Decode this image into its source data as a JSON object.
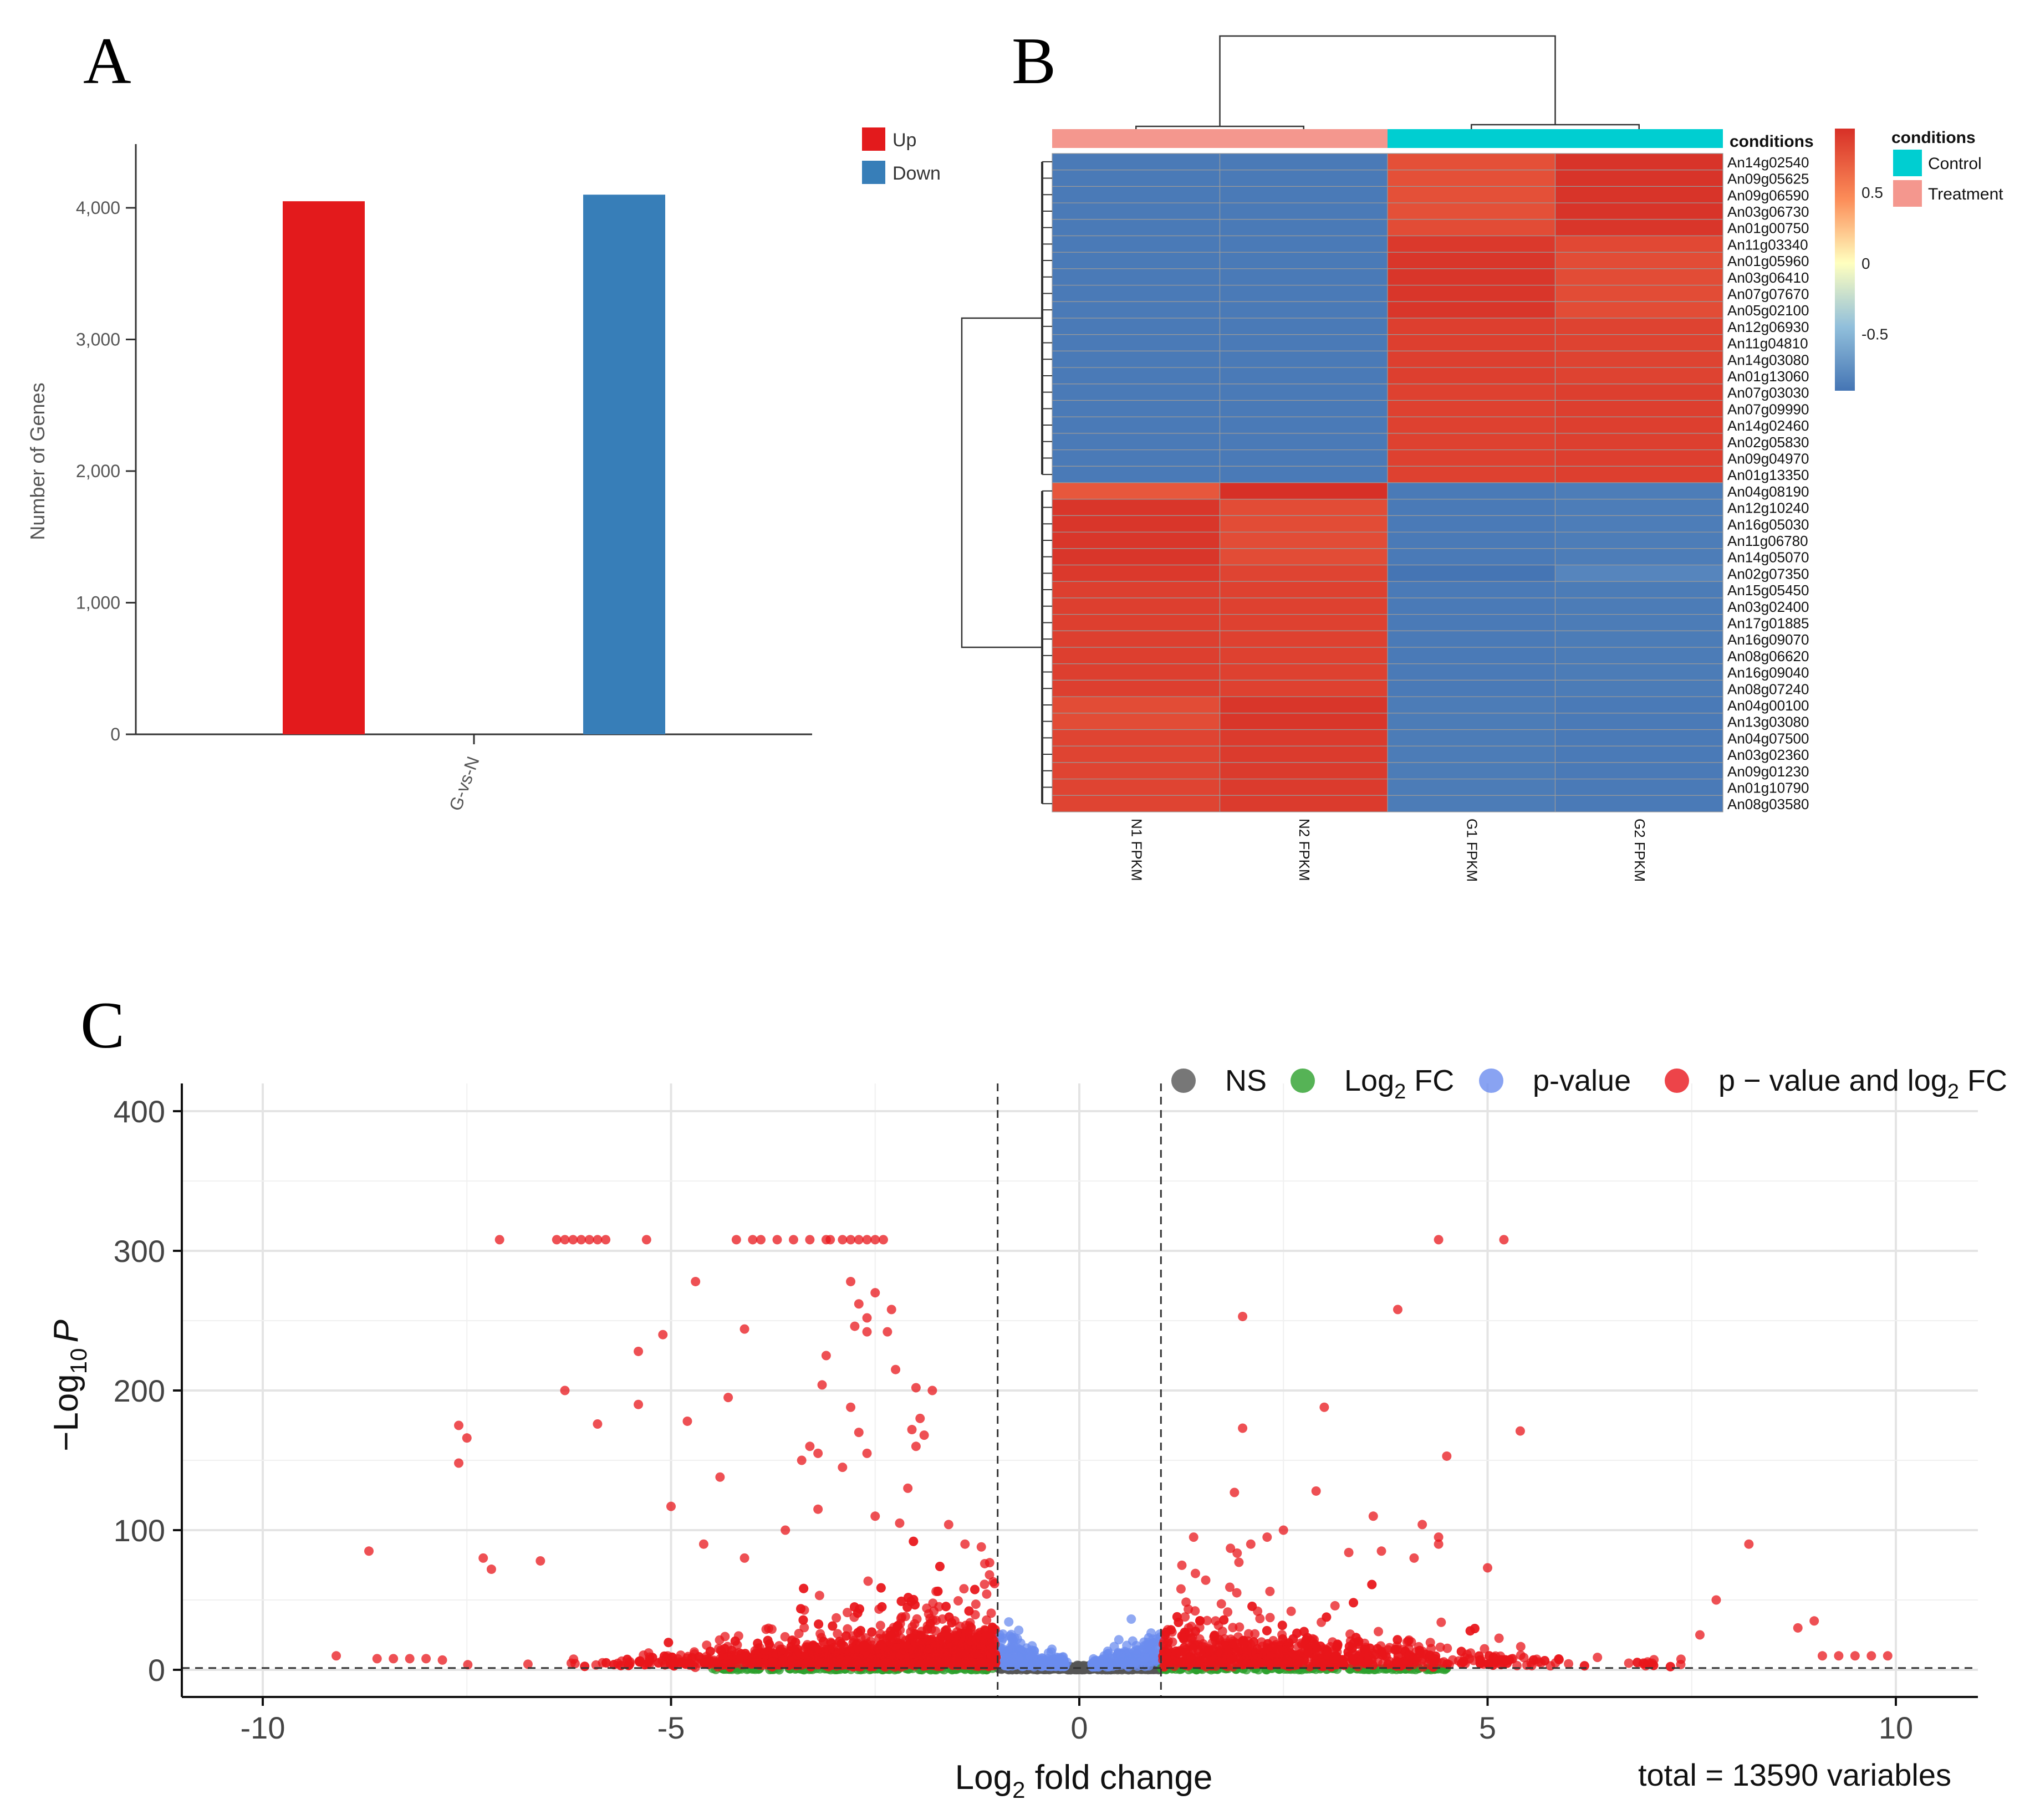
{
  "panel_labels": [
    "A",
    "B",
    "C"
  ],
  "chart_data": [
    {
      "panel": "A",
      "type": "bar",
      "categories": [
        "G-vs-N"
      ],
      "series": [
        {
          "name": "Up",
          "color": "#e31a1c",
          "values": [
            4050
          ]
        },
        {
          "name": "Down",
          "color": "#377eb8",
          "values": [
            4100
          ]
        }
      ],
      "ylabel": "Number of Genes",
      "xlabel": "",
      "ylim": [
        0,
        4500
      ],
      "yticks": [
        0,
        1000,
        2000,
        3000,
        4000
      ],
      "ytick_labels": [
        "0",
        "1,000",
        "2,000",
        "3,000",
        "4,000"
      ],
      "legend": [
        "Up",
        "Down"
      ],
      "legend_position": "top-right"
    },
    {
      "panel": "B",
      "type": "heatmap",
      "columns": [
        "N1 FPKM",
        "N2 FPKM",
        "G1 FPKM",
        "G2 FPKM"
      ],
      "column_conditions": [
        "Treatment",
        "Treatment",
        "Control",
        "Control"
      ],
      "rows": [
        "An14g02540",
        "An09g05625",
        "An09g06590",
        "An03g06730",
        "An01g00750",
        "An11g03340",
        "An01g05960",
        "An03g06410",
        "An07g07670",
        "An05g02100",
        "An12g06930",
        "An11g04810",
        "An14g03080",
        "An01g13060",
        "An07g03030",
        "An07g09990",
        "An14g02460",
        "An02g05830",
        "An09g04970",
        "An01g13350",
        "An04g08190",
        "An12g10240",
        "An16g05030",
        "An11g06780",
        "An14g05070",
        "An02g07350",
        "An15g05450",
        "An03g02400",
        "An17g01885",
        "An16g09070",
        "An08g06620",
        "An16g09040",
        "An08g07240",
        "An04g00100",
        "An13g03080",
        "An04g07500",
        "An03g02360",
        "An09g01230",
        "An01g10790",
        "An08g03580"
      ],
      "values": [
        [
          -0.87,
          -0.87,
          0.78,
          0.93
        ],
        [
          -0.87,
          -0.87,
          0.78,
          0.93
        ],
        [
          -0.87,
          -0.87,
          0.78,
          0.93
        ],
        [
          -0.87,
          -0.87,
          0.78,
          0.93
        ],
        [
          -0.87,
          -0.87,
          0.8,
          0.92
        ],
        [
          -0.87,
          -0.87,
          0.9,
          0.82
        ],
        [
          -0.87,
          -0.87,
          0.92,
          0.8
        ],
        [
          -0.87,
          -0.87,
          0.92,
          0.8
        ],
        [
          -0.87,
          -0.87,
          0.92,
          0.8
        ],
        [
          -0.87,
          -0.87,
          0.92,
          0.8
        ],
        [
          -0.87,
          -0.87,
          0.87,
          0.85
        ],
        [
          -0.87,
          -0.87,
          0.87,
          0.85
        ],
        [
          -0.87,
          -0.87,
          0.87,
          0.85
        ],
        [
          -0.87,
          -0.87,
          0.87,
          0.85
        ],
        [
          -0.87,
          -0.87,
          0.86,
          0.87
        ],
        [
          -0.87,
          -0.87,
          0.86,
          0.87
        ],
        [
          -0.87,
          -0.87,
          0.86,
          0.87
        ],
        [
          -0.87,
          -0.87,
          0.86,
          0.87
        ],
        [
          -0.87,
          -0.87,
          0.86,
          0.87
        ],
        [
          -0.87,
          -0.87,
          0.86,
          0.87
        ],
        [
          0.74,
          0.96,
          -0.87,
          -0.85
        ],
        [
          0.92,
          0.8,
          -0.87,
          -0.85
        ],
        [
          0.92,
          0.8,
          -0.87,
          -0.85
        ],
        [
          0.92,
          0.8,
          -0.87,
          -0.85
        ],
        [
          0.92,
          0.8,
          -0.87,
          -0.85
        ],
        [
          0.9,
          0.84,
          -0.92,
          -0.8
        ],
        [
          0.87,
          0.86,
          -0.87,
          -0.86
        ],
        [
          0.87,
          0.86,
          -0.87,
          -0.86
        ],
        [
          0.87,
          0.86,
          -0.87,
          -0.86
        ],
        [
          0.87,
          0.86,
          -0.87,
          -0.86
        ],
        [
          0.87,
          0.86,
          -0.87,
          -0.86
        ],
        [
          0.87,
          0.86,
          -0.87,
          -0.86
        ],
        [
          0.87,
          0.86,
          -0.87,
          -0.86
        ],
        [
          0.8,
          0.92,
          -0.86,
          -0.87
        ],
        [
          0.8,
          0.92,
          -0.86,
          -0.87
        ],
        [
          0.84,
          0.89,
          -0.86,
          -0.87
        ],
        [
          0.84,
          0.89,
          -0.86,
          -0.87
        ],
        [
          0.84,
          0.89,
          -0.86,
          -0.87
        ],
        [
          0.84,
          0.89,
          -0.86,
          -0.87
        ],
        [
          0.84,
          0.89,
          -0.86,
          -0.87
        ]
      ],
      "color_scale": {
        "min": -0.9,
        "max": 0.95,
        "stops": [
          {
            "v": -0.9,
            "c": "#4575b4"
          },
          {
            "v": -0.45,
            "c": "#91bfdb"
          },
          {
            "v": 0,
            "c": "#ffffbf"
          },
          {
            "v": 0.45,
            "c": "#fc8d59"
          },
          {
            "v": 0.95,
            "c": "#d73027"
          }
        ],
        "tick_values": [
          0.5,
          0,
          -0.5
        ],
        "tick_labels": [
          "0.5",
          "0",
          "-0.5"
        ]
      },
      "annotation_title": "conditions",
      "legend_title": "conditions",
      "legend": [
        {
          "label": "Control",
          "color": "#00ced1"
        },
        {
          "label": "Treatment",
          "color": "#f4978e"
        }
      ]
    },
    {
      "panel": "C",
      "type": "scatter",
      "title": "",
      "xlabel_main": "Log",
      "xlabel_sub": "2",
      "xlabel_rest": " fold change",
      "ylabel_main": "−Log",
      "ylabel_sub": "10",
      "ylabel_italic": "P",
      "xlim": [
        -11,
        11
      ],
      "ylim": [
        -15,
        400
      ],
      "xticks": [
        -10,
        -5,
        0,
        5,
        10
      ],
      "yticks": [
        0,
        100,
        200,
        300,
        400
      ],
      "fc_cutoff": 1,
      "p_cutoff": 1.3,
      "caption": "total = 13590 variables",
      "legend": [
        {
          "key": "NS",
          "label": "NS",
          "sub": "",
          "color": "#555555"
        },
        {
          "key": "fc",
          "label": "Log",
          "sub": "2",
          "rest": " FC",
          "color": "#2ca02c"
        },
        {
          "key": "p",
          "label": "p-value",
          "sub": "",
          "rest": "",
          "color": "#6b8cef"
        },
        {
          "key": "both",
          "label": "p − value and log",
          "sub": "2",
          "rest": " FC",
          "color": "#e8151b"
        }
      ],
      "highlight_points": [
        [
          -7.1,
          308
        ],
        [
          -6.4,
          308
        ],
        [
          -6.3,
          308
        ],
        [
          -6.2,
          308
        ],
        [
          -6.1,
          308
        ],
        [
          -6.0,
          308
        ],
        [
          -5.9,
          308
        ],
        [
          -5.8,
          308
        ],
        [
          -5.3,
          308
        ],
        [
          -4.2,
          308
        ],
        [
          -4.0,
          308
        ],
        [
          -3.9,
          308
        ],
        [
          -3.7,
          308
        ],
        [
          -3.5,
          308
        ],
        [
          -3.3,
          308
        ],
        [
          -3.1,
          308
        ],
        [
          -3.05,
          308
        ],
        [
          -2.9,
          308
        ],
        [
          -2.8,
          308
        ],
        [
          -2.7,
          308
        ],
        [
          -2.6,
          308
        ],
        [
          -2.5,
          308
        ],
        [
          -2.4,
          308
        ],
        [
          4.4,
          308
        ],
        [
          5.2,
          308
        ],
        [
          -4.7,
          278
        ],
        [
          -2.8,
          278
        ],
        [
          -2.5,
          270
        ],
        [
          -2.7,
          262
        ],
        [
          -2.3,
          258
        ],
        [
          -2.6,
          252
        ],
        [
          -2.75,
          246
        ],
        [
          -2.6,
          242
        ],
        [
          -2.35,
          242
        ],
        [
          -5.1,
          240
        ],
        [
          -4.1,
          244
        ],
        [
          -5.4,
          228
        ],
        [
          -3.1,
          225
        ],
        [
          -2.25,
          215
        ],
        [
          -6.3,
          200
        ],
        [
          -3.15,
          204
        ],
        [
          -2.0,
          202
        ],
        [
          -1.8,
          200
        ],
        [
          -4.3,
          195
        ],
        [
          -5.4,
          190
        ],
        [
          -2.8,
          188
        ],
        [
          -1.95,
          180
        ],
        [
          -4.8,
          178
        ],
        [
          -5.9,
          176
        ],
        [
          -7.6,
          175
        ],
        [
          -7.5,
          166
        ],
        [
          -7.6,
          148
        ],
        [
          -2.05,
          172
        ],
        [
          -2.7,
          170
        ],
        [
          -1.9,
          168
        ],
        [
          -2.0,
          160
        ],
        [
          -3.3,
          160
        ],
        [
          -3.2,
          155
        ],
        [
          -2.6,
          155
        ],
        [
          -3.4,
          150
        ],
        [
          -2.9,
          145
        ],
        [
          -4.4,
          138
        ],
        [
          -2.1,
          130
        ],
        [
          -5.0,
          117
        ],
        [
          -3.2,
          115
        ],
        [
          -2.5,
          110
        ],
        [
          -2.2,
          105
        ],
        [
          -7.3,
          80
        ],
        [
          -8.7,
          85
        ],
        [
          -7.2,
          72
        ],
        [
          -4.6,
          90
        ],
        [
          -6.6,
          78
        ],
        [
          -3.6,
          100
        ],
        [
          -1.6,
          104
        ],
        [
          -1.4,
          90
        ],
        [
          -1.2,
          88
        ],
        [
          -4.1,
          80
        ],
        [
          -1.1,
          68
        ],
        [
          1.9,
          127
        ],
        [
          2.0,
          173
        ],
        [
          2.0,
          253
        ],
        [
          3.0,
          188
        ],
        [
          2.9,
          128
        ],
        [
          3.9,
          258
        ],
        [
          5.4,
          171
        ],
        [
          4.5,
          153
        ],
        [
          4.2,
          104
        ],
        [
          3.6,
          110
        ],
        [
          4.4,
          90
        ],
        [
          4.4,
          95
        ],
        [
          8.2,
          90
        ],
        [
          2.5,
          100
        ],
        [
          2.3,
          95
        ],
        [
          1.4,
          95
        ],
        [
          3.3,
          84
        ],
        [
          3.7,
          85
        ],
        [
          2.1,
          90
        ],
        [
          4.1,
          80
        ],
        [
          5.0,
          73
        ],
        [
          7.8,
          50
        ],
        [
          9.0,
          35
        ],
        [
          8.8,
          30
        ],
        [
          7.6,
          25
        ],
        [
          -9.1,
          10
        ],
        [
          -8.6,
          8
        ],
        [
          -8.4,
          8
        ],
        [
          -8.2,
          8
        ],
        [
          -8.0,
          8
        ],
        [
          -7.8,
          7
        ],
        [
          9.5,
          10
        ],
        [
          9.7,
          10
        ],
        [
          9.9,
          10
        ],
        [
          9.3,
          10
        ],
        [
          9.1,
          10
        ]
      ],
      "random_seed": 13590
    }
  ]
}
